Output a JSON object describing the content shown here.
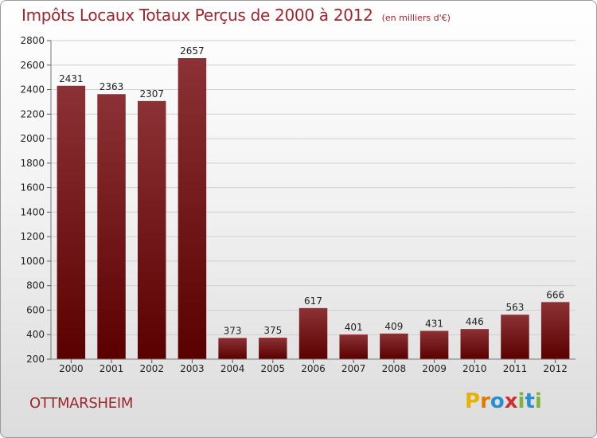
{
  "header": {
    "title": "Impôts Locaux Totaux Perçus de 2000 à 2012",
    "subtitle": "(en milliers d'€)"
  },
  "footer": {
    "commune": "OTTMARSHEIM",
    "logo_letters": [
      "P",
      "r",
      "o",
      "x",
      "i",
      "t",
      "i"
    ],
    "logo_colors": [
      "#e8b000",
      "#e07a00",
      "#2a8fd0",
      "#d02f2f",
      "#7fb43a",
      "#2a8fd0",
      "#7fb43a"
    ]
  },
  "colors": {
    "bar_top": "#8c3236",
    "bar_bottom": "#5a0000",
    "grid": "#cfcfcf",
    "accent": "#a0262e"
  },
  "chart_data": {
    "type": "bar",
    "title": "Impôts Locaux Totaux Perçus de 2000 à 2012",
    "subtitle": "(en milliers d'€)",
    "categories": [
      "2000",
      "2001",
      "2002",
      "2003",
      "2004",
      "2005",
      "2006",
      "2007",
      "2008",
      "2009",
      "2010",
      "2011",
      "2012"
    ],
    "values": [
      2431,
      2363,
      2307,
      2657,
      373,
      375,
      617,
      401,
      409,
      431,
      446,
      563,
      666
    ],
    "ylim": [
      200,
      2800
    ],
    "yticks": [
      200,
      400,
      600,
      800,
      1000,
      1200,
      1400,
      1600,
      1800,
      2000,
      2200,
      2400,
      2600,
      2800
    ],
    "grid": true,
    "legend": "none"
  }
}
